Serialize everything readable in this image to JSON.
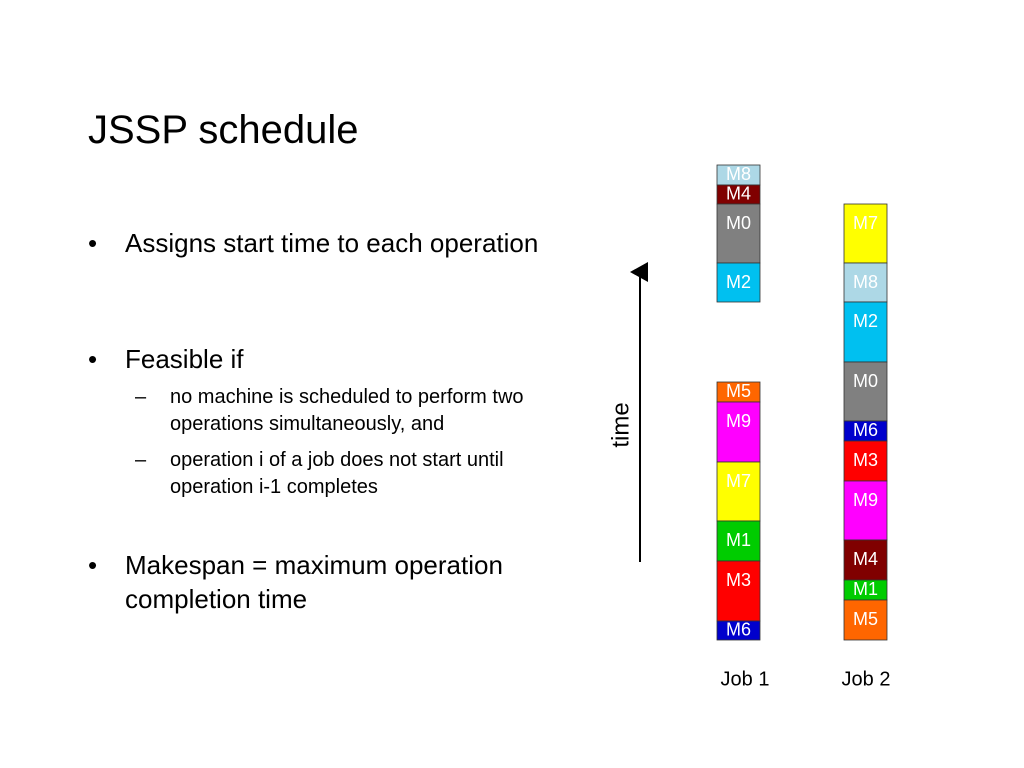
{
  "title": "JSSP schedule",
  "bullets": [
    {
      "text": "Assigns start time to each operation",
      "sub": []
    },
    {
      "text": "Feasible if",
      "sub": [
        "no machine is scheduled to perform two operations simultaneously, and",
        "operation i of a job does not start until operation i-1 completes"
      ]
    },
    {
      "text": "Makespan = maximum operation completion time",
      "sub": []
    }
  ],
  "diagram": {
    "axis_label": "time",
    "jobs": [
      {
        "label": "Job 1",
        "operations": [
          "M8",
          "M4",
          "M0",
          "M2",
          "M5",
          "M9",
          "M7",
          "M1",
          "M3",
          "M6"
        ]
      },
      {
        "label": "Job 2",
        "operations": [
          "M7",
          "M8",
          "M2",
          "M0",
          "M6",
          "M3",
          "M9",
          "M4",
          "M1",
          "M5"
        ]
      }
    ]
  }
}
